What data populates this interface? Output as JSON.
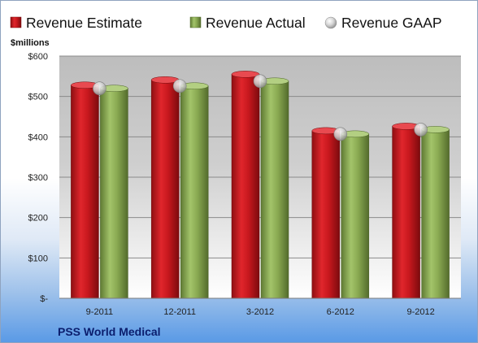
{
  "company": "PSS World Medical",
  "colors": {
    "estimate": "#c8181e",
    "actual": "#8aaa52",
    "gaap": "#cfcfcf"
  },
  "chart_data": {
    "type": "bar",
    "title": "",
    "xlabel": "",
    "ylabel": "$millions",
    "ylim": [
      0,
      600
    ],
    "yticks": [
      0,
      100,
      200,
      300,
      400,
      500,
      600
    ],
    "ytick_labels": [
      "$-",
      "$100",
      "$200",
      "$300",
      "$400",
      "$500",
      "$600"
    ],
    "categories": [
      "9-2011",
      "12-2011",
      "3-2012",
      "6-2012",
      "9-2012"
    ],
    "grid": true,
    "legend_position": "top",
    "series": [
      {
        "name": "Revenue Estimate",
        "kind": "bar",
        "values": [
          528,
          541,
          555,
          415,
          426
        ]
      },
      {
        "name": "Revenue Actual",
        "kind": "bar",
        "values": [
          520,
          526,
          538,
          407,
          418
        ]
      },
      {
        "name": "Revenue GAAP",
        "kind": "marker",
        "values": [
          520,
          526,
          538,
          407,
          418
        ]
      }
    ]
  }
}
